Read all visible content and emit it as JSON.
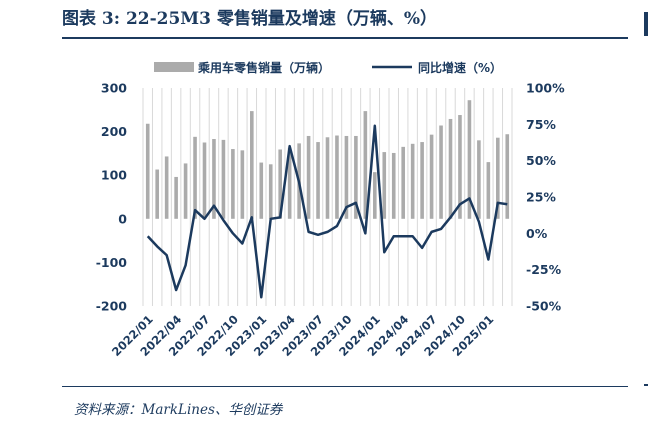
{
  "figure": {
    "title": "图表 3:  22-25M3 零售销量及增速（万辆、%）",
    "source": "资料来源：MarkLines、华创证券"
  },
  "colors": {
    "bar": "#ababab",
    "line": "#1c3a5e",
    "grid": "#d9d9d9",
    "text": "#1c3a5e"
  },
  "chart_data": {
    "type": "bar",
    "title": "",
    "xlabel": "",
    "ylabel": "",
    "legend_position": "top",
    "grid": "vertical",
    "x": [
      "2022/01",
      "2022/02",
      "2022/03",
      "2022/04",
      "2022/05",
      "2022/06",
      "2022/07",
      "2022/08",
      "2022/09",
      "2022/10",
      "2022/11",
      "2022/12",
      "2023/01",
      "2023/02",
      "2023/03",
      "2023/04",
      "2023/05",
      "2023/06",
      "2023/07",
      "2023/08",
      "2023/09",
      "2023/10",
      "2023/11",
      "2023/12",
      "2024/01",
      "2024/02",
      "2024/03",
      "2024/04",
      "2024/05",
      "2024/06",
      "2024/07",
      "2024/08",
      "2024/09",
      "2024/10",
      "2024/11",
      "2024/12",
      "2025/01",
      "2025/02",
      "2025/03"
    ],
    "x_tick_labels": [
      "2022/01",
      "2022/04",
      "2022/07",
      "2022/10",
      "2023/01",
      "2023/04",
      "2023/07",
      "2023/10",
      "2024/01",
      "2024/04",
      "2024/07",
      "2024/10",
      "2025/01"
    ],
    "y_left": {
      "ticks": [
        "300",
        "200",
        "100",
        "0",
        "-100",
        "-200"
      ],
      "lim": [
        -200,
        300
      ]
    },
    "y_right": {
      "ticks": [
        "100%",
        "75%",
        "50%",
        "25%",
        "0%",
        "-25%",
        "-50%"
      ],
      "lim": [
        -50,
        100
      ]
    },
    "series": [
      {
        "name": "乘用车零售销量（万辆）",
        "type": "bar",
        "axis": "left",
        "values": [
          218,
          113,
          143,
          96,
          127,
          188,
          175,
          183,
          181,
          160,
          157,
          247,
          129,
          125,
          159,
          163,
          173,
          190,
          176,
          187,
          191,
          190,
          190,
          247,
          107,
          153,
          151,
          165,
          172,
          176,
          193,
          214,
          229,
          238,
          272,
          180,
          130,
          186,
          194
        ]
      },
      {
        "name": "同比增速（%）",
        "type": "line",
        "axis": "right",
        "values": [
          -2,
          -9,
          -15,
          -39,
          -22,
          16,
          10,
          19,
          9,
          0,
          -7,
          11,
          -44,
          10,
          11,
          60,
          35,
          1,
          -1,
          1,
          5,
          18,
          21,
          0,
          74,
          -13,
          -2,
          -2,
          -2,
          -10,
          1,
          3,
          11,
          20,
          24,
          8,
          -18,
          21,
          20
        ]
      }
    ]
  }
}
